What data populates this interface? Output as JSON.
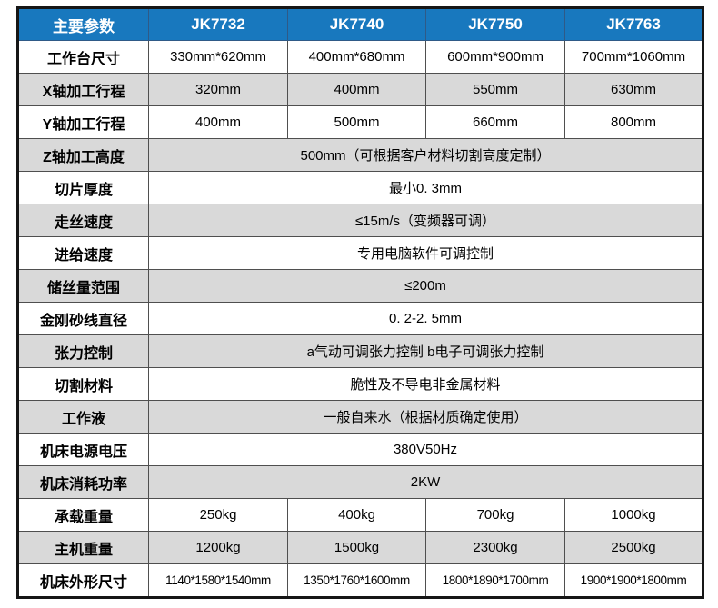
{
  "colors": {
    "header_bg": "#1878be",
    "header_text": "#ffffff",
    "row_alt_bg": "#d9d9d9",
    "row_bg": "#ffffff",
    "grid_border": "#4f4f4f",
    "outer_border": "#161616",
    "body_text": "#000000"
  },
  "table": {
    "header": {
      "cells": [
        "主要参数",
        "JK7732",
        "JK7740",
        "JK7750",
        "JK7763"
      ]
    },
    "rows": [
      {
        "label": "工作台尺寸",
        "values": [
          "330mm*620mm",
          "400mm*680mm",
          "600mm*900mm",
          "700mm*1060mm"
        ]
      },
      {
        "label": "X轴加工行程",
        "values": [
          "320mm",
          "400mm",
          "550mm",
          "630mm"
        ]
      },
      {
        "label": "Y轴加工行程",
        "values": [
          "400mm",
          "500mm",
          "660mm",
          "800mm"
        ]
      },
      {
        "label": "Z轴加工高度",
        "span": "500mm（可根据客户材料切割高度定制）"
      },
      {
        "label": "切片厚度",
        "span": "最小0. 3mm"
      },
      {
        "label": "走丝速度",
        "span": "≤15m/s（变频器可调）"
      },
      {
        "label": "进给速度",
        "span": "专用电脑软件可调控制"
      },
      {
        "label": "储丝量范围",
        "span": "≤200m"
      },
      {
        "label": "金刚砂线直径",
        "span": "0. 2-2. 5mm"
      },
      {
        "label": "张力控制",
        "span": "a气动可调张力控制 b电子可调张力控制"
      },
      {
        "label": "切割材料",
        "span": "脆性及不导电非金属材料"
      },
      {
        "label": "工作液",
        "span": "一般自来水（根据材质确定使用）"
      },
      {
        "label": "机床电源电压",
        "span": "380V50Hz"
      },
      {
        "label": "机床消耗功率",
        "span": "2KW"
      },
      {
        "label": "承载重量",
        "values": [
          "250kg",
          "400kg",
          "700kg",
          "1000kg"
        ]
      },
      {
        "label": "主机重量",
        "values": [
          "1200kg",
          "1500kg",
          "2300kg",
          "2500kg"
        ]
      },
      {
        "label": "机床外形尺寸",
        "values": [
          "1140*1580*1540mm",
          "1350*1760*1600mm",
          "1800*1890*1700mm",
          "1900*1900*1800mm"
        ]
      }
    ]
  }
}
